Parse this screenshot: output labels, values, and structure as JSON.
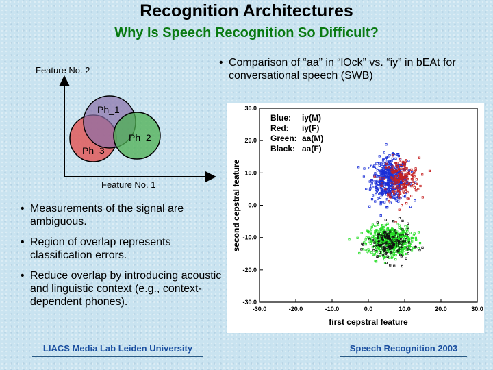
{
  "header": {
    "title": "Recognition Architectures",
    "subtitle": "Why Is Speech Recognition So Difficult?"
  },
  "venn": {
    "y_axis_label": "Feature No. 2",
    "x_axis_label": "Feature No. 1",
    "circles": [
      {
        "label": "Ph_1",
        "color": "#8a6fa8"
      },
      {
        "label": "Ph_2",
        "color": "#4caf50"
      },
      {
        "label": "Ph_3",
        "color": "#e05a5a"
      }
    ]
  },
  "left_bullets": [
    "Measurements of the signal are ambiguous.",
    "Region of overlap represents classification errors.",
    "Reduce overlap by introducing acoustic and linguistic context (e.g., context-dependent phones)."
  ],
  "right_bullet": "Comparison of “aa” in “lOck” vs. “iy” in bEAt for conversational speech (SWB)",
  "chart_data": {
    "type": "scatter",
    "title": "",
    "xlabel": "first cepstral feature",
    "ylabel": "second cepstral feature",
    "xlim": [
      -30,
      30
    ],
    "ylim": [
      -30,
      30
    ],
    "x_ticks": [
      "-30.0",
      "-20.0",
      "-10.0",
      "0.0",
      "10.0",
      "20.0",
      "30.0"
    ],
    "y_ticks": [
      "30.0",
      "20.0",
      "10.0",
      "0.0",
      "-10.0",
      "-20.0",
      "-30.0"
    ],
    "legend": [
      {
        "label": "Blue:",
        "value": "iy(M)",
        "color": "#1a2fd6"
      },
      {
        "label": "Red:",
        "value": "iy(F)",
        "color": "#c42020"
      },
      {
        "label": "Green:",
        "value": "aa(M)",
        "color": "#22dd22"
      },
      {
        "label": "Black:",
        "value": "aa(F)",
        "color": "#111111"
      }
    ],
    "series": [
      {
        "name": "iy(M)",
        "color": "#1a2fd6",
        "center": [
          6,
          8
        ],
        "spread": [
          2.5,
          6
        ],
        "count": 500
      },
      {
        "name": "iy(F)",
        "color": "#c42020",
        "center": [
          9,
          8
        ],
        "spread": [
          2.5,
          6
        ],
        "count": 200
      },
      {
        "name": "aa(M)",
        "color": "#22dd22",
        "center": [
          6,
          -11
        ],
        "spread": [
          3,
          4
        ],
        "count": 500
      },
      {
        "name": "aa(F)",
        "color": "#111111",
        "center": [
          6,
          -12
        ],
        "spread": [
          3,
          5
        ],
        "count": 150
      }
    ]
  },
  "footer": {
    "left": "LIACS Media Lab Leiden University",
    "right": "Speech Recognition 2003"
  }
}
